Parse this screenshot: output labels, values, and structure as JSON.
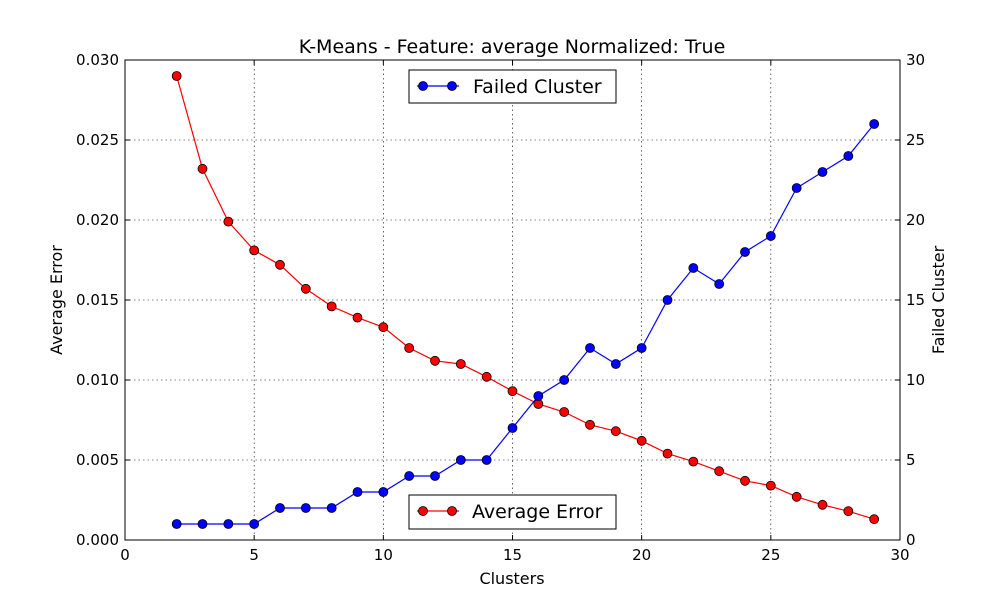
{
  "chart_data": {
    "type": "line",
    "title": "K-Means - Feature: average Normalized: True",
    "xlabel": "Clusters",
    "ylabel_left": "Average Error",
    "ylabel_right": "Failed Cluster",
    "xlim": [
      0,
      30
    ],
    "ylim_left": [
      0,
      0.03
    ],
    "ylim_right": [
      0,
      30
    ],
    "xticks": [
      0,
      5,
      10,
      15,
      20,
      25,
      30
    ],
    "yticks_left": [
      "0.000",
      "0.005",
      "0.010",
      "0.015",
      "0.020",
      "0.025",
      "0.030"
    ],
    "yticks_right": [
      "0",
      "5",
      "10",
      "15",
      "20",
      "25",
      "30"
    ],
    "grid": true,
    "x": [
      2,
      3,
      4,
      5,
      6,
      7,
      8,
      9,
      10,
      11,
      12,
      13,
      14,
      15,
      16,
      17,
      18,
      19,
      20,
      21,
      22,
      23,
      24,
      25,
      26,
      27,
      28,
      29
    ],
    "series": [
      {
        "name": "Average Error",
        "axis": "left",
        "color": "#ff0000",
        "legend": "bottom-center",
        "values": [
          0.029,
          0.0232,
          0.0199,
          0.0181,
          0.0172,
          0.0157,
          0.0146,
          0.0139,
          0.0133,
          0.012,
          0.0112,
          0.011,
          0.0102,
          0.0093,
          0.0085,
          0.008,
          0.0072,
          0.0068,
          0.0062,
          0.0054,
          0.0049,
          0.0043,
          0.0037,
          0.0034,
          0.0027,
          0.0022,
          0.0018,
          0.0013
        ]
      },
      {
        "name": "Failed Cluster",
        "axis": "right",
        "color": "#0000ff",
        "legend": "top-center",
        "values": [
          1,
          1,
          1,
          1,
          2,
          2,
          2,
          3,
          3,
          4,
          4,
          5,
          5,
          7,
          9,
          10,
          12,
          11,
          12,
          15,
          17,
          16,
          18,
          19,
          22,
          23,
          24,
          26
        ]
      }
    ]
  }
}
